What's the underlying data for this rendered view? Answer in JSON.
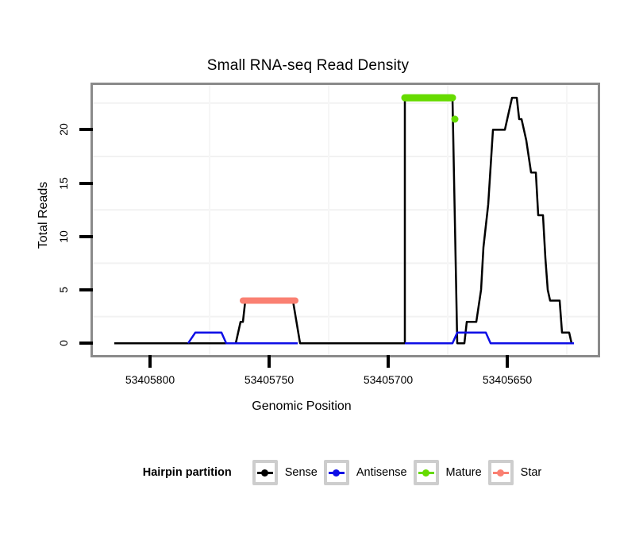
{
  "chart_data": {
    "type": "line",
    "title": "Small RNA-seq Read Density",
    "xlabel": "Genomic Position",
    "ylabel": "Total Reads",
    "x_ticks": [
      "53405800",
      "53405750",
      "53405700",
      "53405650"
    ],
    "x_tick_values": [
      53405800,
      53405750,
      53405700,
      53405650
    ],
    "y_ticks": [
      "0",
      "5",
      "10",
      "15",
      "20"
    ],
    "y_tick_values": [
      0,
      5,
      10,
      15,
      20
    ],
    "xlim": [
      53405824,
      53405612
    ],
    "ylim": [
      -1.1,
      24.2
    ],
    "x_axis_reversed": true,
    "grid": {
      "h_minor": [
        2.5,
        7.5,
        12.5,
        17.5,
        22.5
      ],
      "v_minor": [
        53405775,
        53405725,
        53405675,
        53405625
      ]
    },
    "legend_position": "bottom",
    "series": [
      {
        "name": "Sense",
        "color": "#000000",
        "width": 2.5,
        "segments": [
          [
            [
              53405815,
              0
            ],
            [
              53405764,
              0
            ],
            [
              53405762,
              2
            ],
            [
              53405761,
              2
            ],
            [
              53405760,
              4
            ],
            [
              53405740,
              4
            ],
            [
              53405737,
              0
            ],
            [
              53405693,
              0
            ],
            [
              53405693,
              23
            ],
            [
              53405673,
              23
            ],
            [
              53405671,
              0
            ],
            [
              53405668,
              0
            ],
            [
              53405667,
              2
            ],
            [
              53405663,
              2
            ],
            [
              53405661,
              5
            ],
            [
              53405660,
              9
            ],
            [
              53405658,
              13
            ],
            [
              53405656,
              20
            ],
            [
              53405651,
              20
            ],
            [
              53405648,
              23
            ],
            [
              53405646,
              23
            ],
            [
              53405645,
              21
            ],
            [
              53405644,
              21
            ],
            [
              53405642,
              19
            ],
            [
              53405640,
              16
            ],
            [
              53405638,
              16
            ],
            [
              53405637,
              12
            ],
            [
              53405635,
              12
            ],
            [
              53405634,
              8
            ],
            [
              53405633,
              5
            ],
            [
              53405632,
              4
            ],
            [
              53405628,
              4
            ],
            [
              53405627,
              1
            ],
            [
              53405624,
              1
            ],
            [
              53405623,
              0
            ],
            [
              53405622,
              0
            ]
          ]
        ]
      },
      {
        "name": "Antisense",
        "color": "#0D0DE6",
        "width": 2.5,
        "segments": [
          [
            [
              53405784,
              0
            ],
            [
              53405781,
              1
            ],
            [
              53405770,
              1
            ],
            [
              53405768,
              0
            ],
            [
              53405738,
              0
            ]
          ],
          [
            [
              53405693,
              0
            ],
            [
              53405673,
              0
            ],
            [
              53405671,
              1
            ],
            [
              53405659,
              1
            ],
            [
              53405657,
              0
            ],
            [
              53405622,
              0
            ]
          ]
        ]
      },
      {
        "name": "Mature",
        "color": "#66DB00",
        "width": 9,
        "linecap": "round",
        "segments": [
          [
            [
              53405693,
              23
            ],
            [
              53405673,
              23
            ]
          ]
        ],
        "markers": [
          [
            53405672,
            21
          ]
        ],
        "marker_radius": 4.5
      },
      {
        "name": "Star",
        "color": "#FA8072",
        "width": 8,
        "linecap": "round",
        "segments": [
          [
            [
              53405761,
              4
            ],
            [
              53405739,
              4
            ]
          ]
        ]
      }
    ]
  },
  "legend": {
    "title": "Hairpin partition",
    "items": [
      {
        "label": "Sense",
        "color": "#000000"
      },
      {
        "label": "Antisense",
        "color": "#0D0DE6"
      },
      {
        "label": "Mature",
        "color": "#66DB00"
      },
      {
        "label": "Star",
        "color": "#FA8072"
      }
    ]
  }
}
